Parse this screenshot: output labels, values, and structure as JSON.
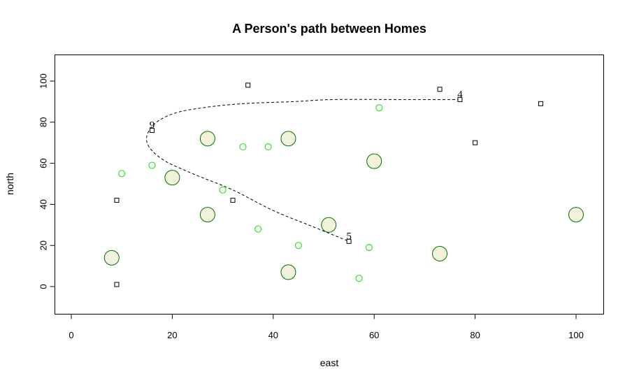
{
  "chart_data": {
    "type": "scatter",
    "title": "A Person's path between Homes",
    "xlabel": "east",
    "ylabel": "north",
    "xlim": [
      0,
      100
    ],
    "ylim": [
      0,
      100
    ],
    "xticks": [
      0,
      20,
      40,
      60,
      80,
      100
    ],
    "yticks": [
      0,
      20,
      40,
      60,
      80,
      100
    ],
    "grid": false,
    "series": [
      {
        "marker": "large-circle",
        "fill": "#f2f2dc",
        "stroke": "#007000",
        "points": [
          [
            8,
            14
          ],
          [
            20,
            53
          ],
          [
            27,
            72
          ],
          [
            27,
            35
          ],
          [
            43,
            72
          ],
          [
            43,
            7
          ],
          [
            51,
            30
          ],
          [
            60,
            61
          ],
          [
            73,
            16
          ],
          [
            100,
            35
          ]
        ]
      },
      {
        "marker": "small-circle",
        "fill": "none",
        "stroke": "#33dd33",
        "points": [
          [
            10,
            55
          ],
          [
            16,
            59
          ],
          [
            30,
            47
          ],
          [
            34,
            68
          ],
          [
            37,
            28
          ],
          [
            39,
            68
          ],
          [
            45,
            20
          ],
          [
            57,
            4
          ],
          [
            59,
            19
          ],
          [
            61,
            87
          ]
        ]
      },
      {
        "marker": "square",
        "fill": "none",
        "stroke": "#000000",
        "points": [
          [
            9,
            42
          ],
          [
            9,
            1
          ],
          [
            16,
            76
          ],
          [
            32,
            42
          ],
          [
            35,
            98
          ],
          [
            55,
            22
          ],
          [
            73,
            96
          ],
          [
            77,
            91
          ],
          [
            80,
            70
          ],
          [
            93,
            89
          ]
        ]
      }
    ],
    "point_labels": [
      {
        "text": "9",
        "x": 16,
        "y": 76
      },
      {
        "text": "4",
        "x": 77,
        "y": 91
      },
      {
        "text": "5",
        "x": 55,
        "y": 22
      }
    ],
    "path": {
      "style": "dashed",
      "color": "#000000",
      "points": [
        [
          77,
          91
        ],
        [
          66,
          91
        ],
        [
          52,
          91
        ],
        [
          44,
          90
        ],
        [
          34,
          89
        ],
        [
          26,
          87
        ],
        [
          20,
          84
        ],
        [
          16,
          78
        ],
        [
          15,
          70
        ],
        [
          18,
          62
        ],
        [
          24,
          55
        ],
        [
          32,
          47
        ],
        [
          40,
          37
        ],
        [
          48,
          29
        ],
        [
          55,
          22
        ]
      ]
    }
  }
}
